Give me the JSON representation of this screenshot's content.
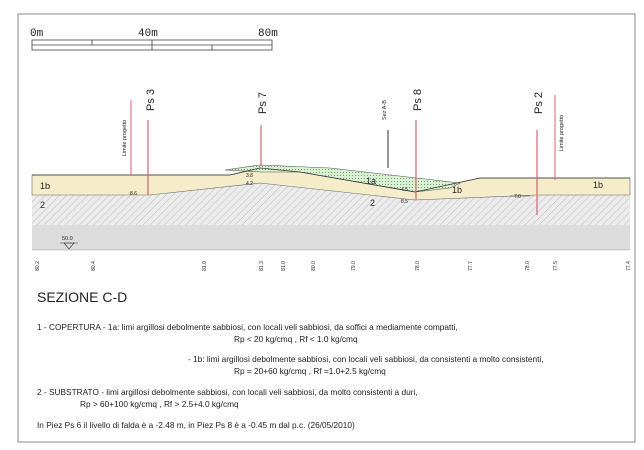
{
  "scale_bar": {
    "labels": [
      "0m",
      "40m",
      "80m"
    ]
  },
  "section": {
    "verticals": [
      "Limite progetto",
      "Ps 3",
      "Ps 7",
      "Sez A-B",
      "Ps 8",
      "Ps 2",
      "Limite progetto"
    ],
    "layers": [
      "1b",
      "2",
      "1a",
      "2",
      "1b",
      "1b"
    ],
    "depths": [
      "8.6",
      "3.8",
      "4.2",
      "4.5",
      "8.5",
      "7.0"
    ],
    "datum": "50.0",
    "elevations": [
      "80.2",
      "80.4",
      "81.0",
      "81.3",
      "81.0",
      "80.0",
      "79.0",
      "78.0",
      "77.7",
      "78.0",
      "77.5",
      "77.4"
    ]
  },
  "legend": {
    "title": "SEZIONE C-D",
    "lines": [
      "1 - COPERTURA - 1a: limi argillosi debolmente sabbiosi, con locali veli sabbiosi, da soffici a mediamente compatti,",
      "Rp < 20 kg/cmq , Rf < 1.0 kg/cmq",
      "- 1b: limi argillosi debolmente sabbiosi, con locali veli sabbiosi, da consistenti a molto consistenti,",
      "Rp = 20+60 kg/cmq , Rf =1.0+2.5 kg/cmq",
      "2 - SUBSTRATO - limi argillosi debolmente sabbiosi, con locali veli sabbiosi, da molto consistenti a duri,",
      "Rp > 60+100 kg/cmq , Rf > 2.5+4.0 kg/cmq",
      "In Piez Ps 6 il livello di falda è a -2.48 m, in Piez Ps 8 è a -0.45 m dal p.c. (26/05/2010)"
    ]
  }
}
